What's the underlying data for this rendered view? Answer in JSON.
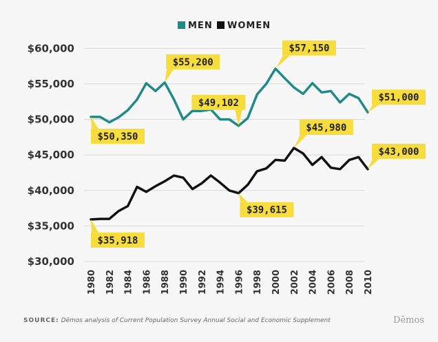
{
  "chart_data": {
    "type": "line",
    "title": "",
    "xlabel": "",
    "ylabel": "",
    "x": [
      1980,
      1981,
      1982,
      1983,
      1984,
      1985,
      1986,
      1987,
      1988,
      1989,
      1990,
      1991,
      1992,
      1993,
      1994,
      1995,
      1996,
      1997,
      1998,
      1999,
      2000,
      2001,
      2002,
      2003,
      2004,
      2005,
      2006,
      2007,
      2008,
      2009,
      2010
    ],
    "x_ticks": [
      "1980",
      "1982",
      "1984",
      "1986",
      "1988",
      "1990",
      "1992",
      "1994",
      "1996",
      "1998",
      "2000",
      "2002",
      "2004",
      "2006",
      "2008",
      "2010"
    ],
    "y_ticks": [
      "$30,000",
      "$35,000",
      "$40,000",
      "$45,000",
      "$50,000",
      "$55,000",
      "$60,000"
    ],
    "ylim": [
      30000,
      61000
    ],
    "legend_placement": "top-center",
    "grid": "horizontal",
    "series": [
      {
        "name": "MEN",
        "color": "#1f8a87",
        "values": [
          50350,
          50350,
          49600,
          50300,
          51300,
          52800,
          55100,
          54000,
          55200,
          52800,
          50000,
          51200,
          51200,
          51400,
          50000,
          50000,
          49102,
          50200,
          53500,
          55000,
          57150,
          55800,
          54500,
          53600,
          55100,
          53800,
          54000,
          52400,
          53600,
          53000,
          51000
        ]
      },
      {
        "name": "WOMEN",
        "color": "#111111",
        "values": [
          35918,
          36000,
          36000,
          37100,
          37800,
          40500,
          39800,
          40600,
          41300,
          42100,
          41800,
          40200,
          41000,
          42100,
          41100,
          40000,
          39615,
          40800,
          42700,
          43100,
          44300,
          44200,
          45980,
          45200,
          43600,
          44700,
          43200,
          43000,
          44300,
          44700,
          43000
        ]
      }
    ],
    "callouts": [
      {
        "label": "$50,350",
        "series": "MEN",
        "year": 1980
      },
      {
        "label": "$55,200",
        "series": "MEN",
        "year": 1988
      },
      {
        "label": "$49,102",
        "series": "MEN",
        "year": 1996
      },
      {
        "label": "$57,150",
        "series": "MEN",
        "year": 2000
      },
      {
        "label": "$51,000",
        "series": "MEN",
        "year": 2010
      },
      {
        "label": "$35,918",
        "series": "WOMEN",
        "year": 1980
      },
      {
        "label": "$39,615",
        "series": "WOMEN",
        "year": 1996
      },
      {
        "label": "$45,980",
        "series": "WOMEN",
        "year": 2002
      },
      {
        "label": "$43,000",
        "series": "WOMEN",
        "year": 2010
      }
    ],
    "callout_color": "#f7dc3e"
  },
  "source": {
    "label": "SOURCE:",
    "text": "Dēmos analysis of Current Population Survey Annual Social and Economic Supplement"
  },
  "brand": "Dēmos"
}
